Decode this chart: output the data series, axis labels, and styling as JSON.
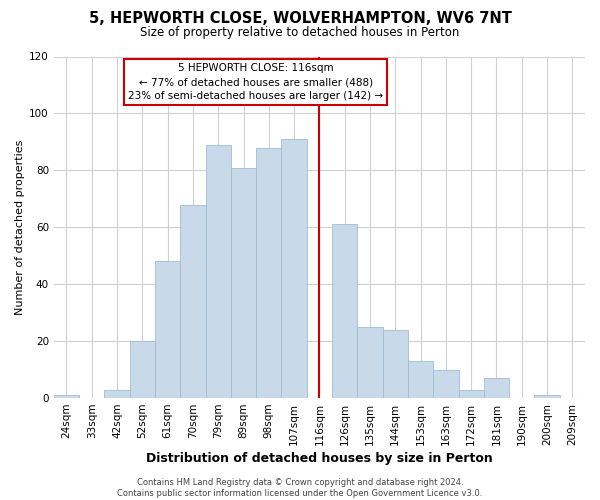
{
  "title": "5, HEPWORTH CLOSE, WOLVERHAMPTON, WV6 7NT",
  "subtitle": "Size of property relative to detached houses in Perton",
  "xlabel": "Distribution of detached houses by size in Perton",
  "ylabel": "Number of detached properties",
  "bar_labels": [
    "24sqm",
    "33sqm",
    "42sqm",
    "52sqm",
    "61sqm",
    "70sqm",
    "79sqm",
    "89sqm",
    "98sqm",
    "107sqm",
    "116sqm",
    "126sqm",
    "135sqm",
    "144sqm",
    "153sqm",
    "163sqm",
    "172sqm",
    "181sqm",
    "190sqm",
    "200sqm",
    "209sqm"
  ],
  "bar_values": [
    1,
    0,
    3,
    20,
    48,
    68,
    89,
    81,
    88,
    91,
    0,
    61,
    25,
    24,
    13,
    10,
    3,
    7,
    0,
    1,
    0
  ],
  "bar_color": "#c8daea",
  "bar_edge_color": "#9fbdd4",
  "vline_color": "#cc0000",
  "ylim": [
    0,
    120
  ],
  "yticks": [
    0,
    20,
    40,
    60,
    80,
    100,
    120
  ],
  "annotation_title": "5 HEPWORTH CLOSE: 116sqm",
  "annotation_line1": "← 77% of detached houses are smaller (488)",
  "annotation_line2": "23% of semi-detached houses are larger (142) →",
  "annotation_box_color": "#ffffff",
  "annotation_box_edge": "#cc0000",
  "footer1": "Contains HM Land Registry data © Crown copyright and database right 2024.",
  "footer2": "Contains public sector information licensed under the Open Government Licence v3.0.",
  "background_color": "#ffffff",
  "grid_color": "#d0d0d0",
  "title_fontsize": 10.5,
  "subtitle_fontsize": 8.5,
  "xlabel_fontsize": 9,
  "ylabel_fontsize": 8,
  "tick_fontsize": 7.5,
  "footer_fontsize": 6
}
